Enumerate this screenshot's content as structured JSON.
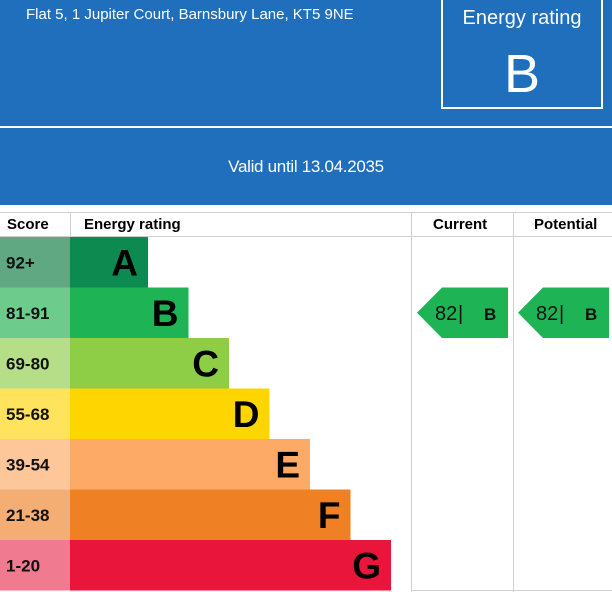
{
  "header": {
    "address": "Flat 5, 1 Jupiter Court, Barnsbury Lane, KT5 9NE",
    "rating_label": "Energy rating",
    "rating_letter": "B",
    "valid_text": "Valid until 13.04.2035",
    "background_color": "#1f6fbd"
  },
  "table": {
    "col_score": "Score",
    "col_rating": "Energy rating",
    "col_current": "Current",
    "col_potential": "Potential"
  },
  "chart_data": {
    "type": "bar",
    "bands": [
      {
        "score": "92+",
        "letter": "A",
        "color": "#0c8a4f",
        "score_bg": "#5fa882"
      },
      {
        "score": "81-91",
        "letter": "B",
        "color": "#1eb456",
        "score_bg": "#6dcb8c"
      },
      {
        "score": "69-80",
        "letter": "C",
        "color": "#8dce46",
        "score_bg": "#b6de88"
      },
      {
        "score": "55-68",
        "letter": "D",
        "color": "#ffd500",
        "score_bg": "#ffe35c"
      },
      {
        "score": "39-54",
        "letter": "E",
        "color": "#fcaa65",
        "score_bg": "#fdc79a"
      },
      {
        "score": "21-38",
        "letter": "F",
        "color": "#ef8023",
        "score_bg": "#f4ad72"
      },
      {
        "score": "1-20",
        "letter": "G",
        "color": "#e9153b",
        "score_bg": "#f07a8f"
      }
    ],
    "current": {
      "value": 82,
      "letter": "B",
      "band_index": 1,
      "color": "#1eb456"
    },
    "potential": {
      "value": 82,
      "letter": "B",
      "band_index": 1,
      "color": "#1eb456"
    },
    "separator": "|"
  }
}
